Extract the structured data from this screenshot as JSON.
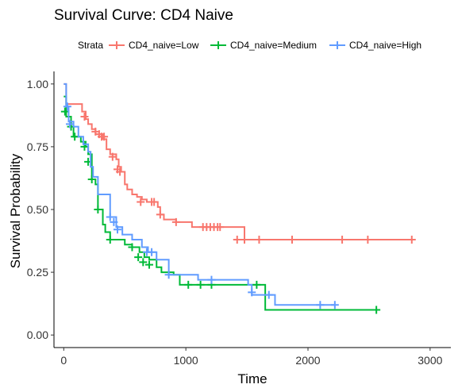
{
  "chart_data": {
    "type": "line",
    "title": "Survival Curve: CD4 Naive",
    "xlabel": "Time",
    "ylabel": "Survival Probability",
    "xlim": [
      -80,
      3170
    ],
    "ylim": [
      -0.05,
      1.05
    ],
    "x_ticks": [
      0,
      1000,
      2000,
      3000
    ],
    "x_tick_labels": [
      "0",
      "1000",
      "2000",
      "3000"
    ],
    "y_ticks": [
      0,
      0.25,
      0.5,
      0.75,
      1.0
    ],
    "y_tick_labels": [
      "0.00",
      "0.25",
      "0.50",
      "0.75",
      "1.00"
    ],
    "grid": false,
    "legend": {
      "position": "top",
      "title": "Strata",
      "entries": [
        "CD4_naive=Low",
        "CD4_naive=Medium",
        "CD4_naive=High"
      ]
    },
    "series": [
      {
        "name": "CD4_naive=Low",
        "color": "#F8766D",
        "steps": [
          [
            0,
            1.0
          ],
          [
            20,
            0.92
          ],
          [
            150,
            0.89
          ],
          [
            180,
            0.86
          ],
          [
            200,
            0.84
          ],
          [
            230,
            0.82
          ],
          [
            260,
            0.8
          ],
          [
            320,
            0.78
          ],
          [
            350,
            0.74
          ],
          [
            380,
            0.72
          ],
          [
            430,
            0.7
          ],
          [
            450,
            0.67
          ],
          [
            470,
            0.65
          ],
          [
            500,
            0.6
          ],
          [
            520,
            0.58
          ],
          [
            560,
            0.56
          ],
          [
            600,
            0.55
          ],
          [
            640,
            0.54
          ],
          [
            680,
            0.53
          ],
          [
            770,
            0.51
          ],
          [
            790,
            0.48
          ],
          [
            820,
            0.46
          ],
          [
            920,
            0.45
          ],
          [
            1050,
            0.43
          ],
          [
            1480,
            0.38
          ],
          [
            2860,
            0.38
          ]
        ],
        "censor_x": [
          170,
          260,
          290,
          310,
          330,
          400,
          440,
          460,
          630,
          720,
          740,
          790,
          920,
          1140,
          1170,
          1200,
          1230,
          1260,
          1280,
          1420,
          1480,
          1600,
          1870,
          2280,
          2490,
          2850
        ],
        "censor_y": [
          0.87,
          0.81,
          0.8,
          0.79,
          0.79,
          0.71,
          0.66,
          0.65,
          0.53,
          0.53,
          0.53,
          0.48,
          0.45,
          0.43,
          0.43,
          0.43,
          0.43,
          0.43,
          0.43,
          0.38,
          0.38,
          0.38,
          0.38,
          0.38,
          0.38,
          0.38
        ]
      },
      {
        "name": "CD4_naive=Medium",
        "color": "#00BA38",
        "steps": [
          [
            0,
            0.95
          ],
          [
            20,
            0.87
          ],
          [
            60,
            0.83
          ],
          [
            80,
            0.79
          ],
          [
            140,
            0.77
          ],
          [
            180,
            0.75
          ],
          [
            200,
            0.72
          ],
          [
            230,
            0.62
          ],
          [
            260,
            0.6
          ],
          [
            280,
            0.5
          ],
          [
            320,
            0.44
          ],
          [
            340,
            0.41
          ],
          [
            380,
            0.38
          ],
          [
            500,
            0.36
          ],
          [
            560,
            0.35
          ],
          [
            620,
            0.33
          ],
          [
            660,
            0.31
          ],
          [
            700,
            0.3
          ],
          [
            760,
            0.27
          ],
          [
            800,
            0.25
          ],
          [
            900,
            0.24
          ],
          [
            950,
            0.2
          ],
          [
            1620,
            0.2
          ],
          [
            1650,
            0.1
          ],
          [
            2560,
            0.1
          ]
        ],
        "censor_x": [
          10,
          60,
          90,
          170,
          200,
          230,
          280,
          380,
          560,
          610,
          650,
          700,
          1020,
          1120,
          1210,
          1580,
          2560
        ],
        "censor_y": [
          0.89,
          0.83,
          0.79,
          0.75,
          0.69,
          0.62,
          0.5,
          0.38,
          0.35,
          0.31,
          0.29,
          0.28,
          0.2,
          0.2,
          0.2,
          0.2,
          0.1
        ]
      },
      {
        "name": "CD4_naive=High",
        "color": "#619CFF",
        "steps": [
          [
            0,
            1.0
          ],
          [
            20,
            0.91
          ],
          [
            40,
            0.85
          ],
          [
            80,
            0.83
          ],
          [
            120,
            0.79
          ],
          [
            160,
            0.76
          ],
          [
            200,
            0.73
          ],
          [
            220,
            0.67
          ],
          [
            240,
            0.63
          ],
          [
            280,
            0.56
          ],
          [
            380,
            0.47
          ],
          [
            430,
            0.43
          ],
          [
            480,
            0.4
          ],
          [
            560,
            0.38
          ],
          [
            640,
            0.35
          ],
          [
            690,
            0.33
          ],
          [
            760,
            0.3
          ],
          [
            860,
            0.24
          ],
          [
            1000,
            0.24
          ],
          [
            1100,
            0.22
          ],
          [
            1510,
            0.2
          ],
          [
            1540,
            0.16
          ],
          [
            1700,
            0.16
          ],
          [
            1730,
            0.12
          ],
          [
            2220,
            0.12
          ]
        ],
        "censor_x": [
          30,
          50,
          380,
          410,
          440,
          680,
          720,
          860,
          1210,
          1540,
          1680,
          2100,
          2220
        ],
        "censor_y": [
          0.91,
          0.84,
          0.47,
          0.45,
          0.42,
          0.33,
          0.33,
          0.24,
          0.22,
          0.17,
          0.16,
          0.12,
          0.12
        ]
      }
    ]
  }
}
